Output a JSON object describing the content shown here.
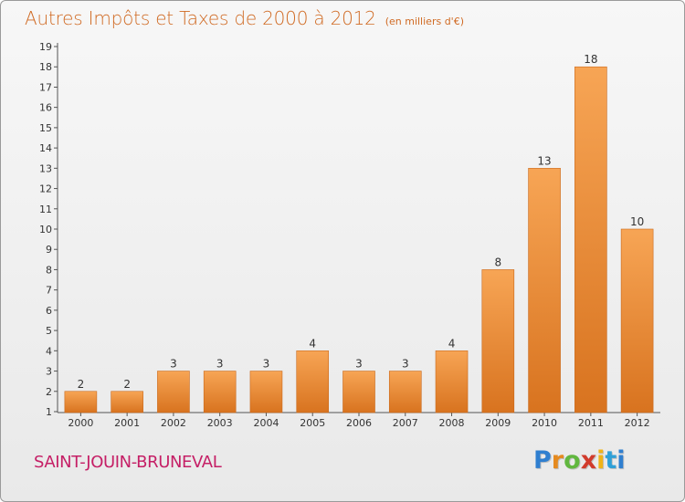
{
  "header": {
    "title": "Autres Impôts et Taxes de 2000 à 2012",
    "subtitle": "(en milliers d'€)"
  },
  "footer": {
    "place": "SAINT-JOUIN-BRUNEVAL",
    "brand": "Proxiti"
  },
  "colors": {
    "title": "#d06a23",
    "place": "#c51f66",
    "bar_light": "#f7a555",
    "bar_dark": "#d8731f",
    "brand": [
      "#2f7fd0",
      "#e58a1f",
      "#61b73f",
      "#d13b2c",
      "#f0b317",
      "#2fa0d7"
    ]
  },
  "chart_data": {
    "type": "bar",
    "title": "Autres Impôts et Taxes de 2000 à 2012",
    "subtitle": "(en milliers d'€)",
    "categories": [
      "2000",
      "2001",
      "2002",
      "2003",
      "2004",
      "2005",
      "2006",
      "2007",
      "2008",
      "2009",
      "2010",
      "2011",
      "2012"
    ],
    "values": [
      2,
      2,
      3,
      3,
      3,
      4,
      3,
      3,
      4,
      8,
      13,
      18,
      10
    ],
    "data_labels": [
      "2",
      "2",
      "3",
      "3",
      "3",
      "4",
      "3",
      "3",
      "4",
      "8",
      "13",
      "18",
      "10"
    ],
    "y_ticks": [
      "1",
      "2",
      "3",
      "4",
      "5",
      "6",
      "7",
      "8",
      "9",
      "10",
      "11",
      "12",
      "13",
      "14",
      "15",
      "16",
      "17",
      "18",
      "19"
    ],
    "ylim": [
      1,
      19
    ],
    "grid": false,
    "legend": "none"
  }
}
